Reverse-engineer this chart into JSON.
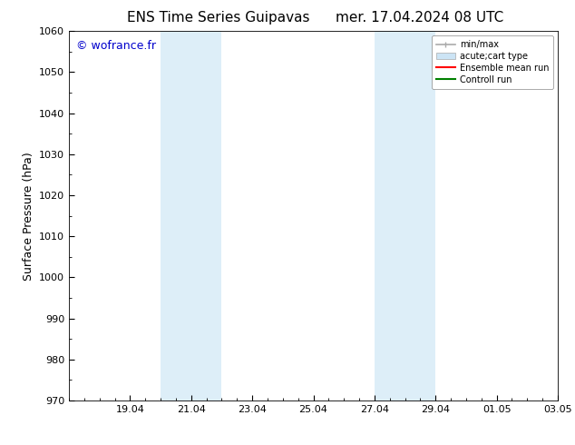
{
  "title_left": "ENS Time Series Guipavas",
  "title_right": "mer. 17.04.2024 08 UTC",
  "ylabel": "Surface Pressure (hPa)",
  "ylim": [
    970,
    1060
  ],
  "yticks": [
    970,
    980,
    990,
    1000,
    1010,
    1020,
    1030,
    1040,
    1050,
    1060
  ],
  "background_color": "#ffffff",
  "plot_bg_color": "#ffffff",
  "watermark": "© wofrance.fr",
  "watermark_color": "#0000cc",
  "shaded_bands": [
    {
      "x_start_days": 3.0,
      "x_end_days": 4.0
    },
    {
      "x_start_days": 4.0,
      "x_end_days": 5.0
    },
    {
      "x_start_days": 10.0,
      "x_end_days": 11.0
    },
    {
      "x_start_days": 11.0,
      "x_end_days": 12.0
    }
  ],
  "shade_color": "#ddeef8",
  "xlim": [
    0,
    16
  ],
  "xtick_labels": [
    "19.04",
    "21.04",
    "23.04",
    "25.04",
    "27.04",
    "29.04",
    "01.05",
    "03.05"
  ],
  "xtick_positions_days": [
    2,
    4,
    6,
    8,
    10,
    12,
    14,
    16
  ],
  "legend_entries": [
    {
      "label": "min/max",
      "color": "#aaaaaa",
      "lw": 1.5
    },
    {
      "label": "acute;cart type",
      "color": "#cce4f5",
      "lw": 6
    },
    {
      "label": "Ensemble mean run",
      "color": "#ff0000",
      "lw": 1.5
    },
    {
      "label": "Controll run",
      "color": "#008000",
      "lw": 1.5
    }
  ],
  "title_fontsize": 11,
  "tick_fontsize": 8,
  "ylabel_fontsize": 9,
  "legend_fontsize": 7,
  "watermark_fontsize": 9,
  "grid_color": "#bbbbbb",
  "grid_alpha": 0.4,
  "minor_xticks_per_day": 4
}
